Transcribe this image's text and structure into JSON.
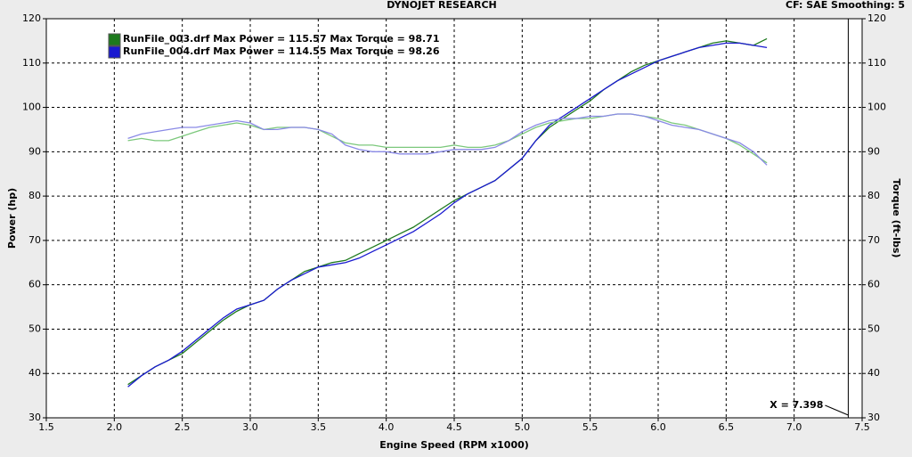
{
  "chart_data": {
    "type": "line",
    "title": "DYNOJET RESEARCH",
    "subtitle": "CF: SAE  Smoothing: 5",
    "x_label": "Engine Speed (RPM x1000)",
    "y_label": "Power (hp)",
    "y2_label": "Torque (ft-lbs)",
    "cursor": {
      "value": 7.398,
      "label": "X = 7.398"
    },
    "grid": true,
    "xlim": [
      1.5,
      7.5
    ],
    "xticks": [
      1.5,
      {
        "value": 2,
        "label": "2.0"
      },
      2.5,
      {
        "value": 3,
        "label": "3.0"
      },
      3.5,
      {
        "value": 4,
        "label": "4.0"
      },
      4.5,
      {
        "value": 5,
        "label": "5.0"
      },
      5.5,
      {
        "value": 6,
        "label": "6.0"
      },
      6.5,
      {
        "value": 7,
        "label": "7.0"
      },
      7.5
    ],
    "ylim": [
      30,
      120
    ],
    "yticks": [
      30,
      40,
      50,
      60,
      70,
      80,
      90,
      100,
      110,
      120
    ],
    "y2lim": [
      30,
      120
    ],
    "y2ticks": [
      30,
      40,
      50,
      60,
      70,
      80,
      90,
      100,
      110,
      120
    ],
    "x": [
      2.1,
      2.2,
      2.3,
      2.4,
      2.5,
      2.6,
      2.7,
      2.8,
      2.9,
      3.0,
      3.1,
      3.2,
      3.3,
      3.4,
      3.5,
      3.6,
      3.7,
      3.8,
      3.9,
      4.0,
      4.1,
      4.2,
      4.3,
      4.4,
      4.5,
      4.6,
      4.7,
      4.8,
      4.9,
      5.0,
      5.1,
      5.2,
      5.3,
      5.4,
      5.5,
      5.6,
      5.7,
      5.8,
      5.9,
      6.0,
      6.1,
      6.2,
      6.3,
      6.4,
      6.5,
      6.6,
      6.7,
      6.8
    ],
    "series": [
      {
        "name": "RunFile_003.drf Max Power = 115.57 Max Torque = 98.71",
        "color": "#1e7a1e",
        "values": [
          37.5,
          39.5,
          41.5,
          43,
          44.5,
          47,
          49.5,
          52,
          54,
          55.5,
          56.5,
          59,
          61,
          63,
          64,
          65,
          65.5,
          67,
          68.5,
          70,
          71.5,
          73,
          75,
          77,
          79,
          80.5,
          82,
          83.5,
          86,
          88.5,
          92.5,
          95.5,
          97.5,
          99.5,
          101.5,
          104,
          106,
          108,
          109.5,
          110.5,
          111.5,
          112.5,
          113.5,
          114.5,
          115,
          114.5,
          114,
          115.5
        ]
      },
      {
        "name": "RunFile_004.drf Max Power = 114.55 Max Torque = 98.26",
        "color": "#1a1ad0",
        "values": [
          37,
          39.5,
          41.5,
          43,
          45,
          47.5,
          50,
          52.5,
          54.5,
          55.5,
          56.5,
          59,
          61,
          62.5,
          64,
          64.5,
          65,
          66,
          67.5,
          69,
          70.5,
          72,
          74,
          76,
          78.5,
          80.5,
          82,
          83.5,
          86,
          88.5,
          92.5,
          96,
          98,
          100,
          102,
          104,
          106,
          107.5,
          109,
          110.5,
          111.5,
          112.5,
          113.5,
          114,
          114.5,
          114.5,
          114,
          113.5
        ]
      },
      {
        "color": "#7cc87c",
        "axis": "y2",
        "values": [
          92.5,
          93,
          92.5,
          92.5,
          93.5,
          94.5,
          95.5,
          96,
          96.5,
          96,
          95,
          95.5,
          95.5,
          95.5,
          95,
          93.5,
          92,
          91.5,
          91.5,
          91,
          91,
          91,
          91,
          91,
          91.5,
          91,
          91,
          91.5,
          92.5,
          94,
          95.5,
          96.5,
          97,
          97.5,
          97.5,
          98,
          98.5,
          98.5,
          98,
          97.5,
          96.5,
          96,
          95,
          94,
          93,
          91.5,
          89.5,
          87.5
        ]
      },
      {
        "color": "#8a8ae6",
        "axis": "y2",
        "values": [
          93,
          94,
          94.5,
          95,
          95.5,
          95.5,
          96,
          96.5,
          97,
          96.5,
          95,
          95,
          95.5,
          95.5,
          95,
          94,
          91.5,
          90.5,
          90,
          90,
          89.5,
          89.5,
          89.5,
          90,
          90.5,
          90.5,
          90.5,
          91,
          92.5,
          94.5,
          96,
          97,
          97.5,
          97.5,
          98,
          98,
          98.5,
          98.5,
          98,
          97,
          96,
          95.5,
          95,
          94,
          93,
          92,
          90,
          87
        ]
      }
    ]
  }
}
